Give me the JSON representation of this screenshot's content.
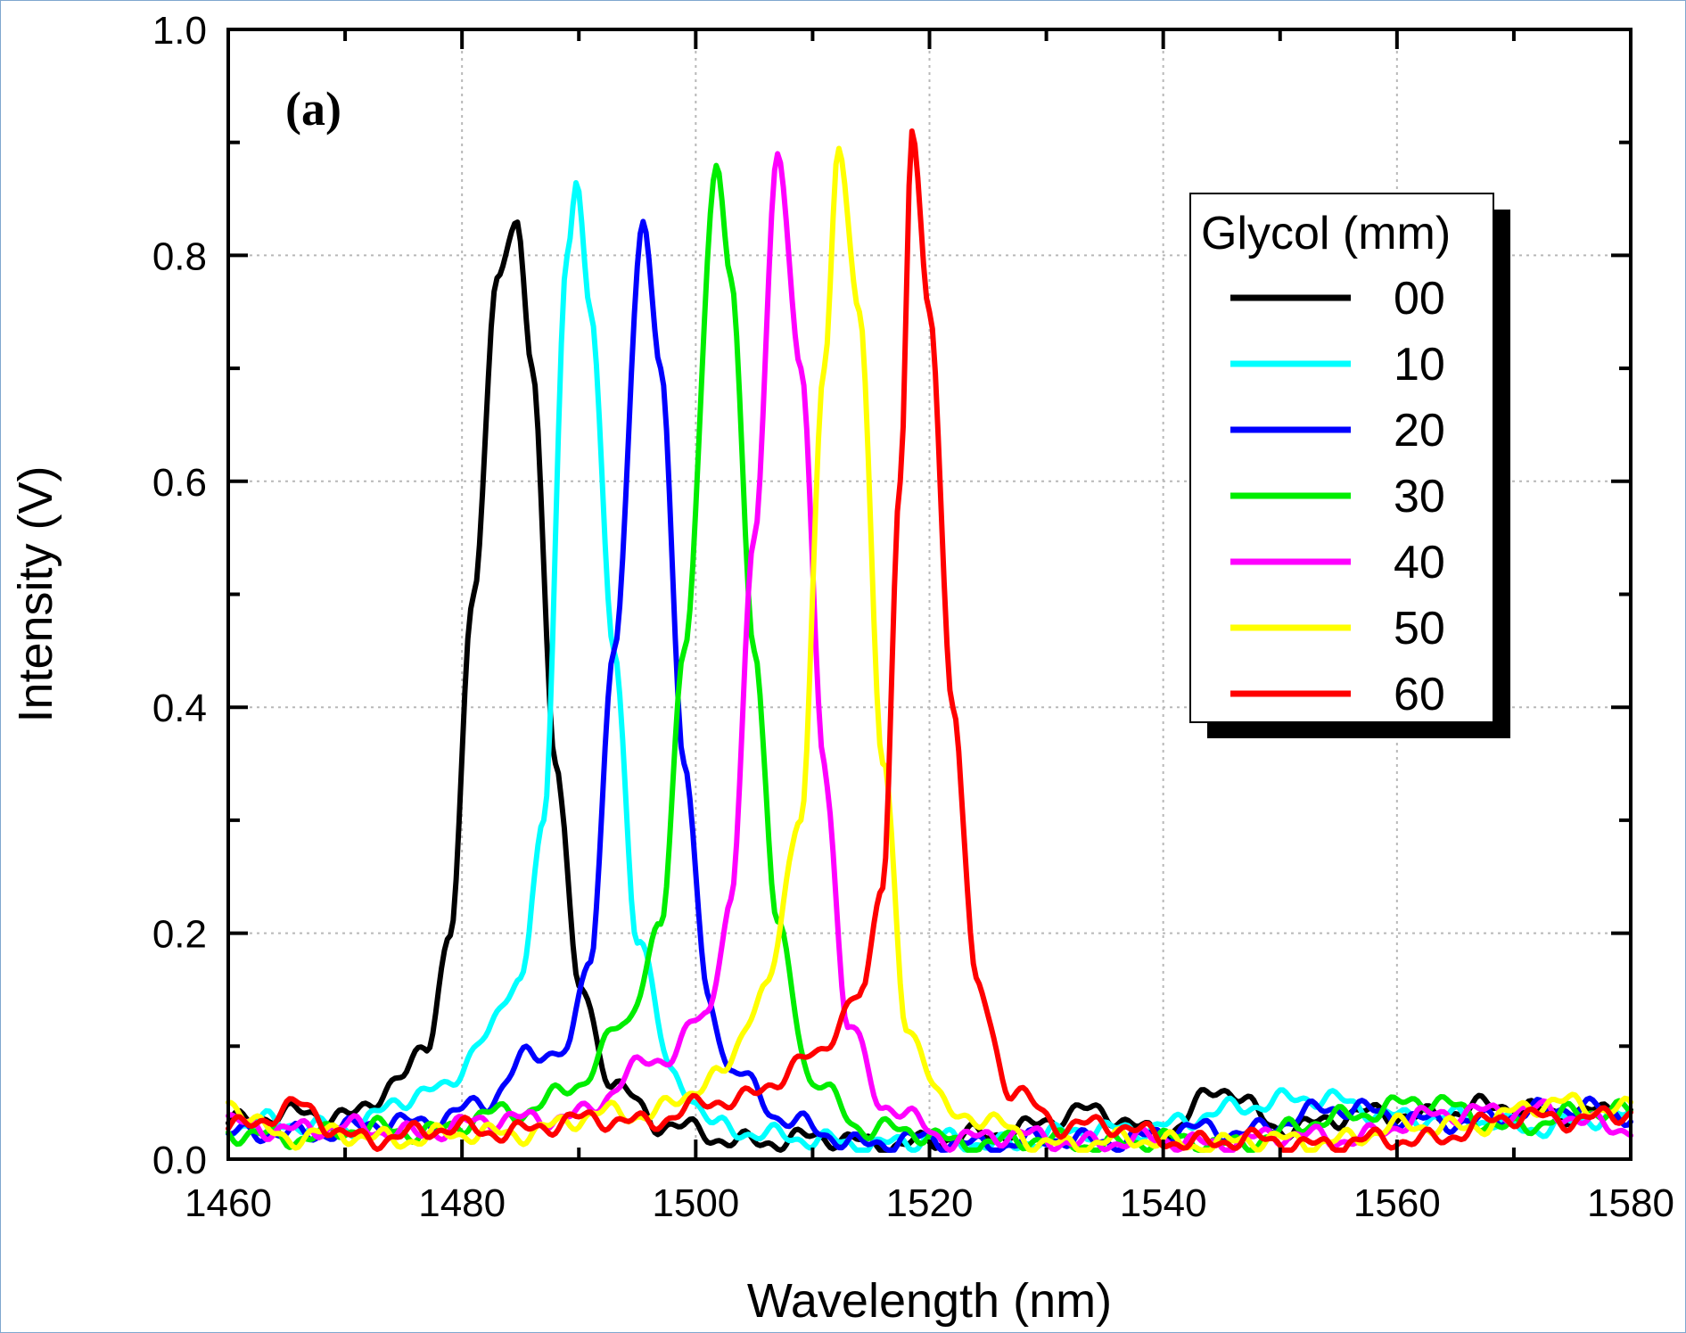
{
  "chart_data": {
    "type": "line",
    "panel_label": "(a)",
    "xlabel": "Wavelength (nm)",
    "ylabel": "Intensity (V)",
    "xlim": [
      1460,
      1580
    ],
    "ylim": [
      0.0,
      1.0
    ],
    "xticks": [
      1460,
      1480,
      1500,
      1520,
      1540,
      1560,
      1580
    ],
    "xtick_labels": [
      "1460",
      "1480",
      "1500",
      "1520",
      "1540",
      "1560",
      "1580"
    ],
    "yticks": [
      0.0,
      0.2,
      0.4,
      0.6,
      0.8,
      1.0
    ],
    "ytick_labels": [
      "0.0",
      "0.2",
      "0.4",
      "0.6",
      "0.8",
      "1.0"
    ],
    "grid": true,
    "legend": {
      "title": "Glycol (mm)",
      "placement": "top-right"
    },
    "series": [
      {
        "name": "00",
        "color": "#000000",
        "peak_x": 1484.7,
        "peak_y": 0.83,
        "width_left": 2.3,
        "width_right": 2.6,
        "baseline_y": 0.035,
        "points": [
          [
            1460,
            0.035
          ],
          [
            1470,
            0.04
          ],
          [
            1475,
            0.07
          ],
          [
            1477,
            0.1
          ],
          [
            1479,
            0.2
          ],
          [
            1481,
            0.5
          ],
          [
            1483,
            0.78
          ],
          [
            1484.7,
            0.83
          ],
          [
            1486,
            0.7
          ],
          [
            1488,
            0.35
          ],
          [
            1490,
            0.15
          ],
          [
            1493,
            0.07
          ],
          [
            1497,
            0.03
          ],
          [
            1502,
            0.018
          ],
          [
            1520,
            0.015
          ],
          [
            1534,
            0.04
          ],
          [
            1540,
            0.025
          ],
          [
            1545,
            0.06
          ],
          [
            1550,
            0.03
          ],
          [
            1560,
            0.04
          ],
          [
            1570,
            0.045
          ],
          [
            1580,
            0.04
          ]
        ]
      },
      {
        "name": "10",
        "color": "#00ffff",
        "peak_x": 1489.8,
        "peak_y": 0.865,
        "width_left": 1.6,
        "width_right": 2.4,
        "baseline_y": 0.03,
        "points": [
          [
            1460,
            0.03
          ],
          [
            1470,
            0.03
          ],
          [
            1478,
            0.06
          ],
          [
            1482,
            0.11
          ],
          [
            1485,
            0.16
          ],
          [
            1487,
            0.3
          ],
          [
            1489,
            0.8
          ],
          [
            1489.8,
            0.865
          ],
          [
            1491,
            0.75
          ],
          [
            1493,
            0.45
          ],
          [
            1495,
            0.2
          ],
          [
            1498,
            0.07
          ],
          [
            1502,
            0.03
          ],
          [
            1510,
            0.015
          ],
          [
            1525,
            0.015
          ],
          [
            1540,
            0.03
          ],
          [
            1551,
            0.055
          ],
          [
            1560,
            0.04
          ],
          [
            1570,
            0.03
          ],
          [
            1580,
            0.035
          ]
        ]
      },
      {
        "name": "20",
        "color": "#0000ff",
        "peak_x": 1495.5,
        "peak_y": 0.83,
        "width_left": 1.6,
        "width_right": 2.4,
        "baseline_y": 0.025,
        "points": [
          [
            1460,
            0.02
          ],
          [
            1475,
            0.03
          ],
          [
            1482,
            0.05
          ],
          [
            1486,
            0.09
          ],
          [
            1489,
            0.1
          ],
          [
            1491,
            0.18
          ],
          [
            1493,
            0.45
          ],
          [
            1495.5,
            0.83
          ],
          [
            1497,
            0.7
          ],
          [
            1499,
            0.35
          ],
          [
            1501,
            0.15
          ],
          [
            1503,
            0.08
          ],
          [
            1508,
            0.03
          ],
          [
            1515,
            0.015
          ],
          [
            1530,
            0.015
          ],
          [
            1545,
            0.025
          ],
          [
            1557,
            0.045
          ],
          [
            1565,
            0.03
          ],
          [
            1572,
            0.045
          ],
          [
            1580,
            0.04
          ]
        ]
      },
      {
        "name": "30",
        "color": "#00ee00",
        "peak_x": 1501.8,
        "peak_y": 0.88,
        "width_left": 1.6,
        "width_right": 2.4,
        "baseline_y": 0.025,
        "points": [
          [
            1460,
            0.02
          ],
          [
            1475,
            0.025
          ],
          [
            1485,
            0.04
          ],
          [
            1490,
            0.07
          ],
          [
            1494,
            0.12
          ],
          [
            1497,
            0.2
          ],
          [
            1499,
            0.45
          ],
          [
            1501.8,
            0.88
          ],
          [
            1503,
            0.78
          ],
          [
            1505,
            0.45
          ],
          [
            1507,
            0.2
          ],
          [
            1510,
            0.07
          ],
          [
            1515,
            0.025
          ],
          [
            1525,
            0.015
          ],
          [
            1545,
            0.015
          ],
          [
            1562,
            0.05
          ],
          [
            1570,
            0.03
          ],
          [
            1580,
            0.045
          ]
        ]
      },
      {
        "name": "40",
        "color": "#ff00ff",
        "peak_x": 1507.0,
        "peak_y": 0.89,
        "width_left": 1.6,
        "width_right": 2.5,
        "baseline_y": 0.02,
        "points": [
          [
            1460,
            0.03
          ],
          [
            1475,
            0.025
          ],
          [
            1490,
            0.04
          ],
          [
            1497,
            0.09
          ],
          [
            1501,
            0.13
          ],
          [
            1503,
            0.23
          ],
          [
            1505,
            0.55
          ],
          [
            1507,
            0.89
          ],
          [
            1509,
            0.7
          ],
          [
            1511,
            0.35
          ],
          [
            1513,
            0.12
          ],
          [
            1516,
            0.045
          ],
          [
            1522,
            0.02
          ],
          [
            1540,
            0.015
          ],
          [
            1555,
            0.02
          ],
          [
            1568,
            0.045
          ],
          [
            1580,
            0.03
          ]
        ]
      },
      {
        "name": "50",
        "color": "#ffff00",
        "peak_x": 1512.2,
        "peak_y": 0.895,
        "width_left": 1.7,
        "width_right": 2.3,
        "baseline_y": 0.02,
        "points": [
          [
            1460,
            0.05
          ],
          [
            1465,
            0.02
          ],
          [
            1480,
            0.02
          ],
          [
            1495,
            0.04
          ],
          [
            1502,
            0.07
          ],
          [
            1506,
            0.15
          ],
          [
            1509,
            0.3
          ],
          [
            1511,
            0.7
          ],
          [
            1512.2,
            0.895
          ],
          [
            1514,
            0.75
          ],
          [
            1516,
            0.35
          ],
          [
            1518,
            0.12
          ],
          [
            1522,
            0.04
          ],
          [
            1530,
            0.015
          ],
          [
            1550,
            0.015
          ],
          [
            1565,
            0.03
          ],
          [
            1575,
            0.05
          ],
          [
            1580,
            0.045
          ]
        ]
      },
      {
        "name": "60",
        "color": "#ff0000",
        "peak_x": 1518.5,
        "peak_y": 0.91,
        "width_left": 1.6,
        "width_right": 2.5,
        "baseline_y": 0.025,
        "points": [
          [
            1460,
            0.03
          ],
          [
            1466,
            0.045
          ],
          [
            1470,
            0.02
          ],
          [
            1480,
            0.025
          ],
          [
            1495,
            0.035
          ],
          [
            1503,
            0.05
          ],
          [
            1510,
            0.09
          ],
          [
            1514,
            0.14
          ],
          [
            1516,
            0.24
          ],
          [
            1517.5,
            0.6
          ],
          [
            1518.5,
            0.91
          ],
          [
            1520,
            0.75
          ],
          [
            1522,
            0.4
          ],
          [
            1524,
            0.15
          ],
          [
            1527,
            0.06
          ],
          [
            1532,
            0.03
          ],
          [
            1545,
            0.015
          ],
          [
            1560,
            0.015
          ],
          [
            1570,
            0.035
          ],
          [
            1580,
            0.04
          ]
        ]
      }
    ]
  }
}
